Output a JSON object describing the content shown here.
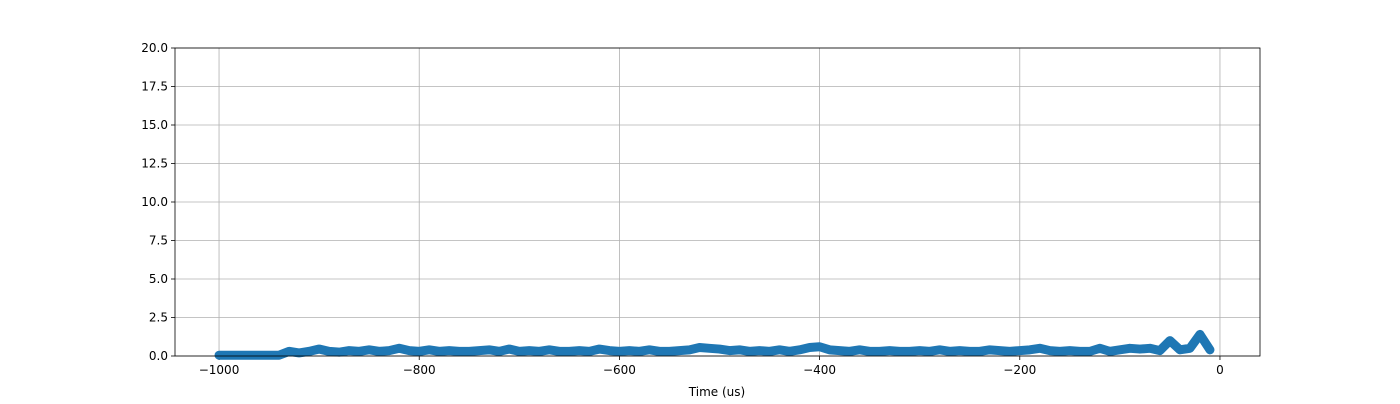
{
  "chart_data": {
    "type": "line",
    "xlabel": "Time (us)",
    "x": [
      -1000,
      -990,
      -980,
      -970,
      -960,
      -950,
      -940,
      -930,
      -920,
      -910,
      -900,
      -890,
      -880,
      -870,
      -860,
      -850,
      -840,
      -830,
      -820,
      -810,
      -800,
      -790,
      -780,
      -770,
      -760,
      -750,
      -740,
      -730,
      -720,
      -710,
      -700,
      -690,
      -680,
      -670,
      -660,
      -650,
      -640,
      -630,
      -620,
      -610,
      -600,
      -590,
      -580,
      -570,
      -560,
      -550,
      -540,
      -530,
      -520,
      -510,
      -500,
      -490,
      -480,
      -470,
      -460,
      -450,
      -440,
      -430,
      -420,
      -410,
      -400,
      -390,
      -380,
      -370,
      -360,
      -350,
      -340,
      -330,
      -320,
      -310,
      -300,
      -290,
      -280,
      -270,
      -260,
      -250,
      -240,
      -230,
      -220,
      -210,
      -200,
      -190,
      -180,
      -170,
      -160,
      -150,
      -140,
      -130,
      -120,
      -110,
      -100,
      -90,
      -80,
      -70,
      -60,
      -50,
      -40,
      -30,
      -20,
      -10
    ],
    "series": [
      {
        "color": "#1f77b4",
        "values": [
          0.05,
          0.05,
          0.05,
          0.05,
          0.05,
          0.05,
          0.05,
          0.3,
          0.2,
          0.3,
          0.45,
          0.3,
          0.25,
          0.35,
          0.3,
          0.4,
          0.3,
          0.35,
          0.5,
          0.35,
          0.3,
          0.4,
          0.3,
          0.35,
          0.3,
          0.3,
          0.35,
          0.4,
          0.3,
          0.45,
          0.3,
          0.35,
          0.3,
          0.4,
          0.3,
          0.3,
          0.35,
          0.3,
          0.45,
          0.35,
          0.3,
          0.35,
          0.3,
          0.4,
          0.3,
          0.3,
          0.35,
          0.4,
          0.55,
          0.5,
          0.45,
          0.35,
          0.4,
          0.3,
          0.35,
          0.3,
          0.4,
          0.3,
          0.4,
          0.55,
          0.6,
          0.4,
          0.35,
          0.3,
          0.4,
          0.3,
          0.3,
          0.35,
          0.3,
          0.3,
          0.35,
          0.3,
          0.4,
          0.3,
          0.35,
          0.3,
          0.3,
          0.4,
          0.35,
          0.3,
          0.35,
          0.4,
          0.5,
          0.35,
          0.3,
          0.35,
          0.3,
          0.3,
          0.5,
          0.3,
          0.4,
          0.5,
          0.45,
          0.5,
          0.35,
          1.0,
          0.4,
          0.5,
          1.4,
          0.4
        ]
      }
    ],
    "xlim": [
      -1044,
      40
    ],
    "xticks": [
      {
        "value": -1000,
        "label": "−1000"
      },
      {
        "value": -800,
        "label": "−800"
      },
      {
        "value": -600,
        "label": "−600"
      },
      {
        "value": -400,
        "label": "−400"
      },
      {
        "value": -200,
        "label": "−200"
      },
      0
    ],
    "ylim": [
      0,
      20
    ],
    "yticks": [
      {
        "value": 0,
        "label": "0.0"
      },
      2.5,
      {
        "value": 5,
        "label": "5.0"
      },
      7.5,
      {
        "value": 10,
        "label": "10.0"
      },
      12.5,
      {
        "value": 15,
        "label": "15.0"
      },
      17.5,
      {
        "value": 20,
        "label": "20.0"
      }
    ],
    "grid": true
  }
}
